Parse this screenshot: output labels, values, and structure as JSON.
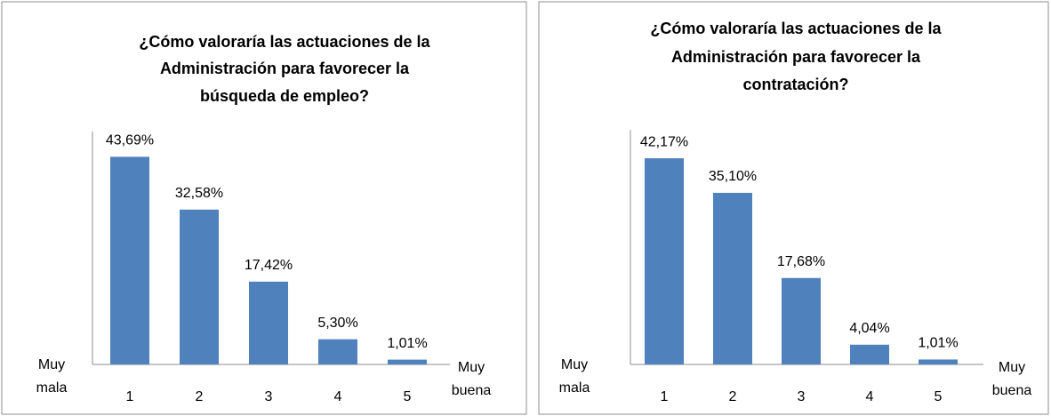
{
  "chart_data": [
    {
      "type": "bar",
      "title": [
        "¿Cómo valoraría las actuaciones de la",
        "Administración para favorecer la",
        "búsqueda de empleo?"
      ],
      "categories": [
        "1",
        "2",
        "3",
        "4",
        "5"
      ],
      "values": [
        43.69,
        32.58,
        17.42,
        5.3,
        1.01
      ],
      "value_labels": [
        "43,69%",
        "32,58%",
        "17,42%",
        "5,30%",
        "1,01%"
      ],
      "x_label_low": [
        "Muy",
        "mala"
      ],
      "x_label_high": [
        "Muy",
        "buena"
      ],
      "color": "#4f81bd",
      "ylim": [
        0,
        49
      ]
    },
    {
      "type": "bar",
      "title": [
        "¿Cómo valoraría las actuaciones de la",
        "Administración para favorecer la",
        "contratación?"
      ],
      "categories": [
        "1",
        "2",
        "3",
        "4",
        "5"
      ],
      "values": [
        42.17,
        35.1,
        17.68,
        4.04,
        1.01
      ],
      "value_labels": [
        "42,17%",
        "35,10%",
        "17,68%",
        "4,04%",
        "1,01%"
      ],
      "x_label_low": [
        "Muy",
        "mala"
      ],
      "x_label_high": [
        "Muy",
        "buena"
      ],
      "color": "#4f81bd",
      "ylim": [
        0,
        48
      ]
    }
  ]
}
